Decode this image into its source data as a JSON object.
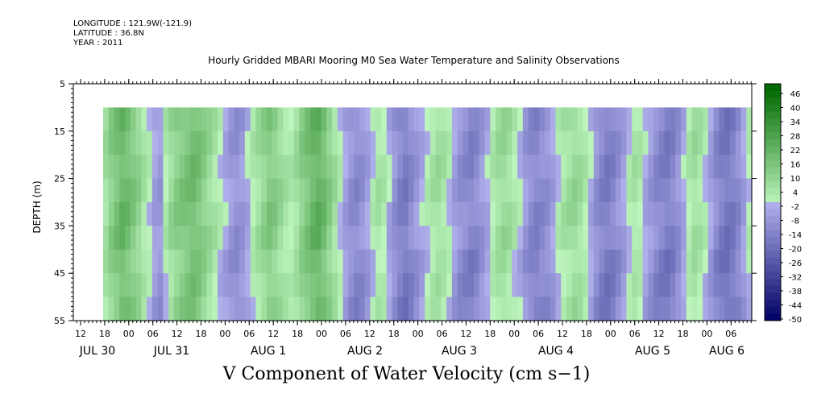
{
  "header": {
    "longitude": "LONGITUDE : 121.9W(-121.9)",
    "latitude": "LATITUDE : 36.8N",
    "year": "YEAR : 2011"
  },
  "chart_data": {
    "type": "heatmap",
    "title": "Hourly Gridded MBARI Mooring M0 Sea Water Temperature and Salinity Observations",
    "xlabel": "V Component of Water Velocity (cm s−1)",
    "ylabel": "DEPTH (m)",
    "y_axis": {
      "ticks": [
        5,
        15,
        25,
        35,
        45,
        55
      ],
      "range": [
        5,
        55
      ],
      "inverted": true,
      "data_range": [
        10,
        55
      ]
    },
    "x_axis": {
      "start_hour_label": "12",
      "hour_tick_labels": [
        "12",
        "18",
        "00",
        "06",
        "12",
        "18",
        "00",
        "06",
        "12",
        "18",
        "00",
        "06",
        "12",
        "18",
        "00",
        "06",
        "12",
        "18",
        "00",
        "06",
        "12",
        "18",
        "00",
        "06",
        "12",
        "18",
        "00",
        "06",
        "12",
        "18",
        "00",
        "06"
      ],
      "day_labels": [
        "JUL 30",
        "JUL 31",
        "AUG  1",
        "AUG  2",
        "AUG  3",
        "AUG  4",
        "AUG  5",
        "AUG  6"
      ],
      "data_start_hour": "18 on JUL 30"
    },
    "colorbar": {
      "labels": [
        "46",
        "40",
        "34",
        "28",
        "22",
        "16",
        "10",
        "4",
        "-2",
        "-8",
        "-14",
        "-20",
        "-26",
        "-32",
        "-38",
        "-44",
        "-50"
      ],
      "min": -50,
      "max": 52,
      "step": 3
    },
    "field_columns": [
      8,
      14,
      18,
      22,
      20,
      16,
      12,
      6,
      2,
      -4,
      -6,
      4,
      10,
      14,
      16,
      18,
      20,
      18,
      14,
      10,
      6,
      2,
      -2,
      -6,
      -8,
      -6,
      -2,
      4,
      8,
      12,
      16,
      14,
      10,
      6,
      4,
      8,
      14,
      18,
      22,
      24,
      20,
      14,
      8,
      2,
      -4,
      -8,
      -10,
      -8,
      -4,
      2,
      6,
      4,
      -2,
      -8,
      -12,
      -14,
      -10,
      -6,
      -2,
      2,
      6,
      8,
      6,
      2,
      -4,
      -8,
      -10,
      -12,
      -10,
      -6,
      -2,
      4,
      8,
      10,
      8,
      4,
      0,
      -6,
      -10,
      -12,
      -10,
      -8,
      -4,
      2,
      6,
      8,
      10,
      8,
      4,
      -2,
      -8,
      -12,
      -14,
      -12,
      -8,
      -4,
      2,
      6,
      4,
      -2,
      -6,
      -10,
      -12,
      -14,
      -12,
      -8,
      -2,
      4,
      8,
      6,
      2,
      -4,
      -10,
      -14,
      -16,
      -14,
      -10,
      -4,
      2
    ]
  }
}
